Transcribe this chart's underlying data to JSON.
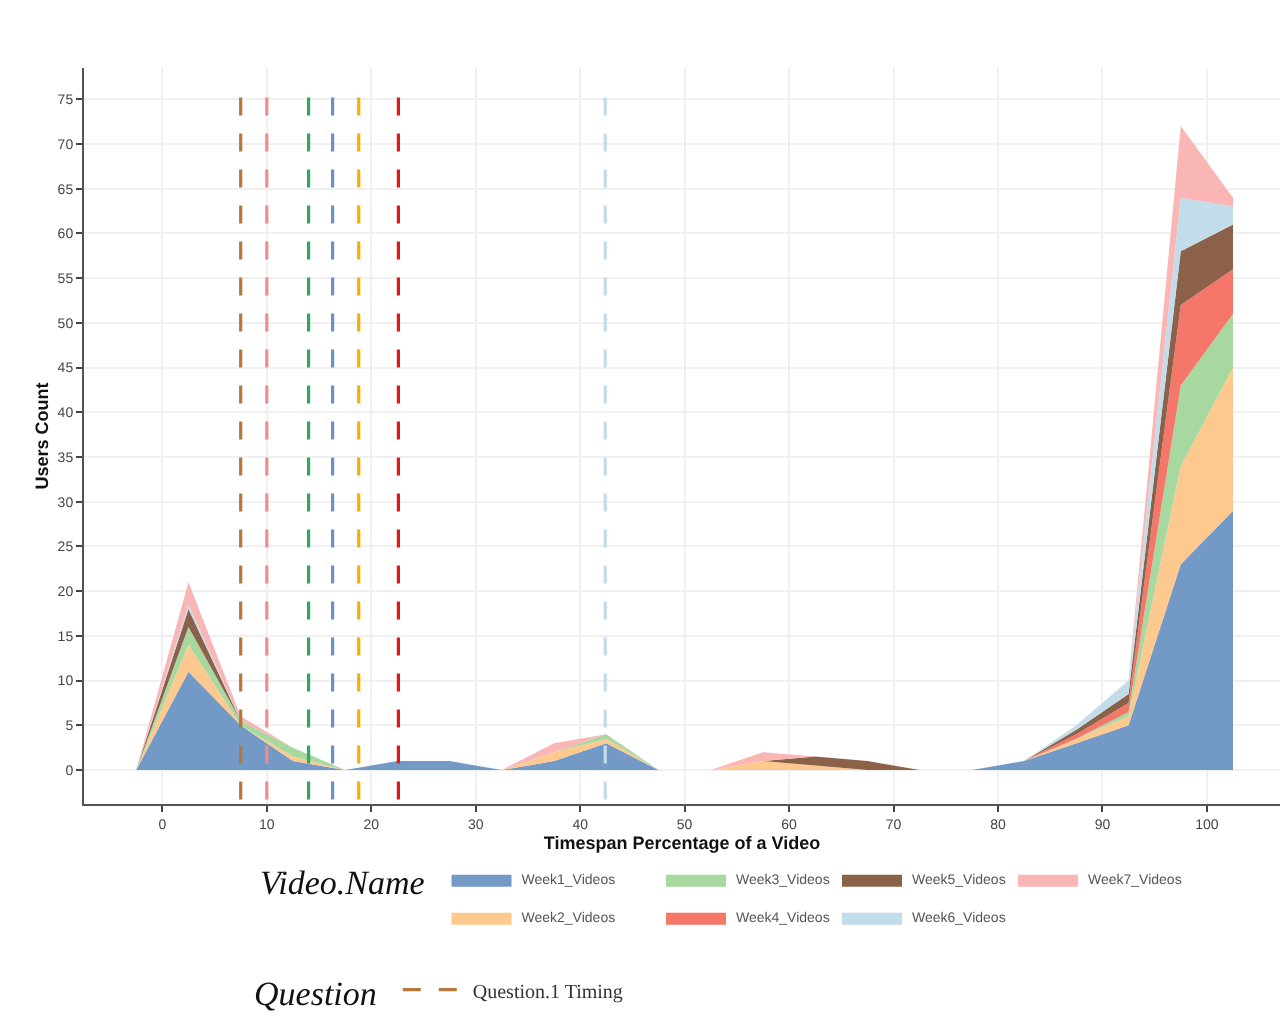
{
  "chart_data": {
    "type": "area",
    "stacked": true,
    "xlabel": "Timespan Percentage of a Video",
    "ylabel": "Users Count",
    "legend_title": "Video.Name",
    "legend": "bottom",
    "grid": true,
    "x": [
      -2.5,
      2.5,
      7.5,
      12.5,
      17.5,
      22.5,
      27.5,
      32.5,
      37.5,
      42.5,
      47.5,
      52.5,
      57.5,
      62.5,
      67.5,
      72.5,
      77.5,
      82.5,
      87.5,
      92.5,
      97.5,
      102.5
    ],
    "xlim": [
      -7.5,
      107
    ],
    "xticks": [
      0,
      10,
      20,
      30,
      40,
      50,
      60,
      70,
      80,
      90,
      100
    ],
    "ylim": [
      -3.8,
      78.5
    ],
    "yticks": [
      0,
      5,
      10,
      15,
      20,
      25,
      30,
      35,
      40,
      45,
      50,
      55,
      60,
      65,
      70,
      75
    ],
    "series": [
      {
        "name": "Week1_Videos",
        "color": "#7399c6",
        "values": [
          0,
          11,
          5,
          1,
          0,
          1,
          1,
          0,
          1,
          3,
          0,
          0,
          0,
          0,
          0,
          0,
          0,
          1,
          3,
          5,
          23,
          29
        ]
      },
      {
        "name": "Week2_Videos",
        "color": "#fdc98f",
        "values": [
          0,
          3,
          0,
          0.5,
          0,
          0,
          0,
          0,
          1,
          0.5,
          0,
          0,
          1,
          0.5,
          0,
          0,
          0,
          0,
          0.5,
          1,
          11,
          16
        ]
      },
      {
        "name": "Week3_Videos",
        "color": "#a6d8a0",
        "values": [
          0,
          2,
          0.5,
          1,
          0,
          0,
          0,
          0,
          0,
          0.5,
          0,
          0,
          0,
          0,
          0,
          0,
          0,
          0,
          0,
          0.5,
          9,
          6
        ]
      },
      {
        "name": "Week4_Videos",
        "color": "#f4776a",
        "values": [
          0,
          0,
          0,
          0,
          0,
          0,
          0,
          0,
          0,
          0,
          0,
          0,
          0,
          0,
          0,
          0,
          0,
          0,
          0.5,
          1,
          9,
          5
        ]
      },
      {
        "name": "Week5_Videos",
        "color": "#8c6149",
        "values": [
          0,
          2,
          0,
          0,
          0,
          0,
          0,
          0,
          0,
          0,
          0,
          0,
          0,
          1,
          1,
          0,
          0,
          0,
          0.5,
          1,
          6,
          5
        ]
      },
      {
        "name": "Week6_Videos",
        "color": "#c2dcea",
        "values": [
          0,
          0.5,
          0,
          0,
          0,
          0,
          0,
          0,
          0,
          0,
          0,
          0,
          0,
          0,
          0,
          0,
          0,
          0,
          0.5,
          1.5,
          6,
          2
        ]
      },
      {
        "name": "Week7_Videos",
        "color": "#f9b6b5",
        "values": [
          0,
          2.5,
          0.5,
          0,
          0,
          0,
          0,
          0,
          1,
          0,
          0,
          0,
          1,
          0,
          0,
          0,
          0,
          0,
          0,
          0,
          8,
          1
        ]
      }
    ],
    "ref_lines": [
      {
        "axis": "x",
        "value": 7.5,
        "label": "Question.1 Timing",
        "color": "#b5773c",
        "line_style": "dashed"
      },
      {
        "axis": "x",
        "value": 10,
        "color": "#f08c8c",
        "line_style": "dashed"
      },
      {
        "axis": "x",
        "value": 14,
        "color": "#2eaa5a",
        "line_style": "dashed"
      },
      {
        "axis": "x",
        "value": 16.3,
        "color": "#6c8fc6",
        "line_style": "dashed"
      },
      {
        "axis": "x",
        "value": 18.8,
        "color": "#f5b100",
        "line_style": "dashed"
      },
      {
        "axis": "x",
        "value": 22.6,
        "color": "#e01818",
        "line_style": "dashed"
      },
      {
        "axis": "x",
        "value": 42.4,
        "color": "#c2dcea",
        "line_style": "dashed"
      }
    ],
    "annotations": [
      "Question"
    ]
  }
}
